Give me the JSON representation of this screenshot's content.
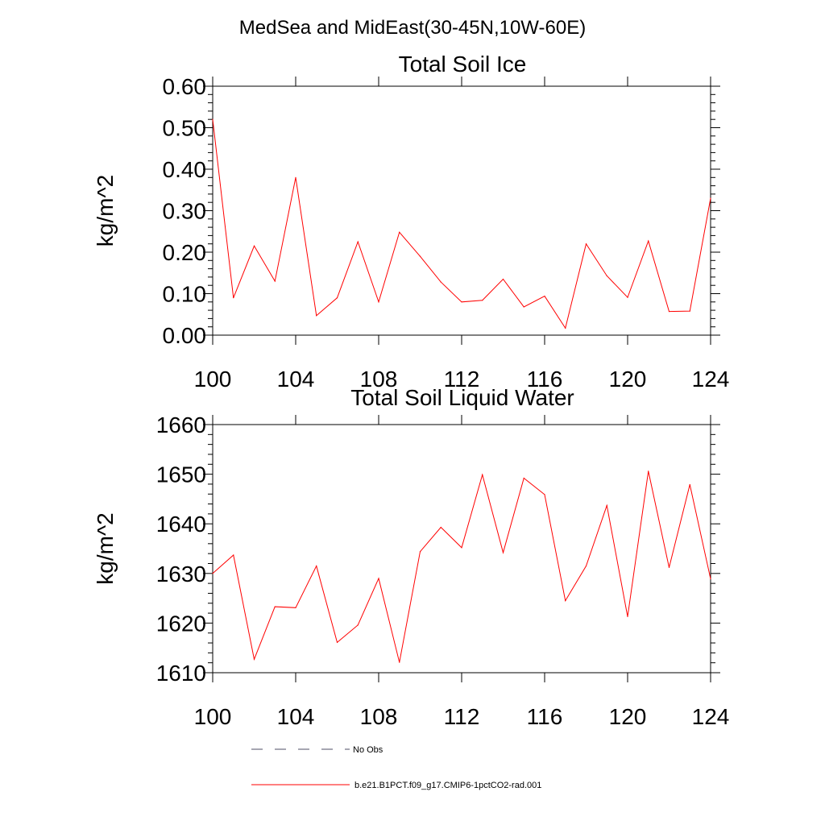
{
  "figure": {
    "title": "MedSea and MidEast(30-45N,10W-60E)"
  },
  "legend": {
    "entries": [
      {
        "label": "No Obs",
        "style": "dashed",
        "color": "#4d4d66"
      },
      {
        "label": "b.e21.B1PCT.f09_g17.CMIP6-1pctCO2-rad.001",
        "style": "solid",
        "color": "#ff0000"
      }
    ]
  },
  "chart_data": [
    {
      "type": "line",
      "title": "Total Soil Ice",
      "xlabel": "",
      "ylabel": "kg/m^2",
      "xlim": [
        100,
        124
      ],
      "ylim": [
        0,
        0.6
      ],
      "xticks": [
        100,
        104,
        108,
        112,
        116,
        120,
        124
      ],
      "xtick_labels": [
        "100",
        "104",
        "108",
        "112",
        "116",
        "120",
        "124"
      ],
      "yticks": [
        0,
        0.1,
        0.2,
        0.3,
        0.4,
        0.5,
        0.6
      ],
      "ytick_labels": [
        "0.00",
        "0.10",
        "0.20",
        "0.30",
        "0.40",
        "0.50",
        "0.60"
      ],
      "grid": false,
      "x": [
        100,
        101,
        102,
        103,
        104,
        105,
        106,
        107,
        108,
        109,
        110,
        111,
        112,
        113,
        114,
        115,
        116,
        117,
        118,
        119,
        120,
        121,
        122,
        123,
        124
      ],
      "series": [
        {
          "color": "#ff0000",
          "values": [
            0.52,
            0.09,
            0.215,
            0.13,
            0.38,
            0.047,
            0.09,
            0.225,
            0.08,
            0.248,
            0.19,
            0.128,
            0.08,
            0.084,
            0.135,
            0.068,
            0.094,
            0.017,
            0.22,
            0.143,
            0.091,
            0.227,
            0.057,
            0.058,
            0.33
          ]
        }
      ]
    },
    {
      "type": "line",
      "title": "Total Soil Liquid Water",
      "xlabel": "",
      "ylabel": "kg/m^2",
      "xlim": [
        100,
        124
      ],
      "ylim": [
        1610,
        1660
      ],
      "xticks": [
        100,
        104,
        108,
        112,
        116,
        120,
        124
      ],
      "xtick_labels": [
        "100",
        "104",
        "108",
        "112",
        "116",
        "120",
        "124"
      ],
      "yticks": [
        1610,
        1620,
        1630,
        1640,
        1650,
        1660
      ],
      "ytick_labels": [
        "1610",
        "1620",
        "1630",
        "1640",
        "1650",
        "1660"
      ],
      "grid": false,
      "x": [
        100,
        101,
        102,
        103,
        104,
        105,
        106,
        107,
        108,
        109,
        110,
        111,
        112,
        113,
        114,
        115,
        116,
        117,
        118,
        119,
        120,
        121,
        122,
        123,
        124
      ],
      "series": [
        {
          "color": "#ff0000",
          "values": [
            1630,
            1633.7,
            1612.7,
            1623.3,
            1623.1,
            1631.5,
            1616.1,
            1619.6,
            1629,
            1612.1,
            1634.4,
            1639.3,
            1635.2,
            1649.9,
            1634.2,
            1649.2,
            1645.9,
            1624.5,
            1631.5,
            1643.7,
            1621.3,
            1650.6,
            1631.2,
            1647.9,
            1628.9
          ]
        }
      ]
    }
  ]
}
